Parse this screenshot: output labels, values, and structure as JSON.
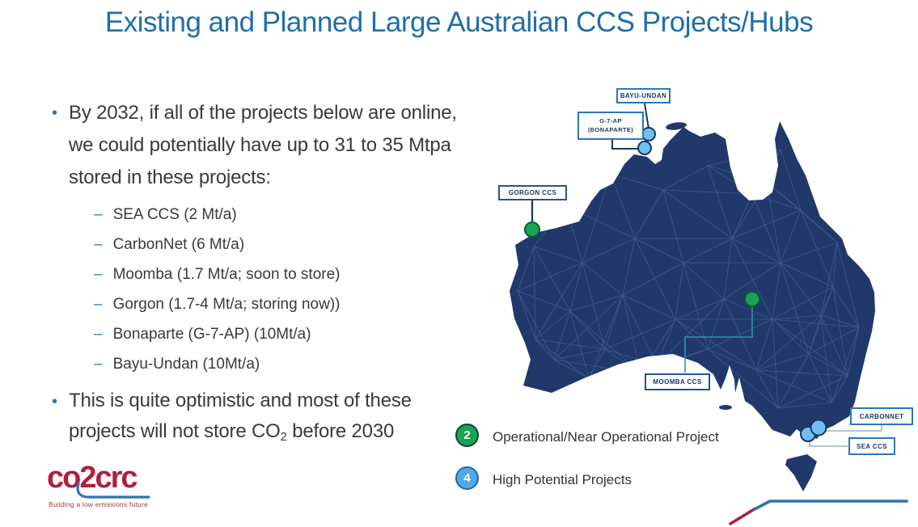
{
  "slide_title": "Existing and Planned Large Australian CCS Projects/Hubs",
  "glyphs": {
    "bullet": "•",
    "dash": "–"
  },
  "bullets": {
    "b1": "By 2032, if all of the projects below are online, we could potentially have up to 31 to 35 Mtpa stored in these projects:",
    "sub_items": [
      "SEA CCS (2 Mt/a)",
      "CarbonNet (6 Mt/a)",
      "Moomba (1.7 Mt/a; soon to store)",
      "Gorgon (1.7-4 Mt/a; storing now))",
      "Bonaparte (G-7-AP) (10Mt/a)",
      "Bayu-Undan (10Mt/a)"
    ],
    "b2_pre": "This is quite optimistic and most of these projects will not store CO",
    "b2_sub": "2",
    "b2_post": " before 2030"
  },
  "legend": {
    "items": [
      {
        "count": "2",
        "label": "Operational/Near Operational Project",
        "fill": "#18A455",
        "border": "#0B4A28"
      },
      {
        "count": "4",
        "label": "High Potential Projects",
        "fill": "#4FA9EC",
        "border": "#2268A8"
      }
    ]
  },
  "map": {
    "labels": {
      "bayu_undan": "BAYU-UNDAN",
      "g7ap_line1": "G-7-AP",
      "g7ap_line2": "(BONAPARTE)",
      "gorgon": "GORGON CCS",
      "moomba": "MOOMBA CCS",
      "carbonnet": "CARBONNET",
      "sea_ccs": "SEA CCS"
    },
    "marker_colors": {
      "operational": "#18A455",
      "high_potential": "#6FBFF2"
    },
    "map_fill": "#21386B",
    "connector_teal": "#2C96A8",
    "connector_gray": "#9FB0C4"
  },
  "logo": {
    "text": "co2crc",
    "tagline": "Building a low emissions future"
  },
  "colors": {
    "title": "#1F6FA8",
    "body_text": "#3A3A3A",
    "accent_blue": "#2E74B5",
    "corner_red": "#A02440"
  }
}
